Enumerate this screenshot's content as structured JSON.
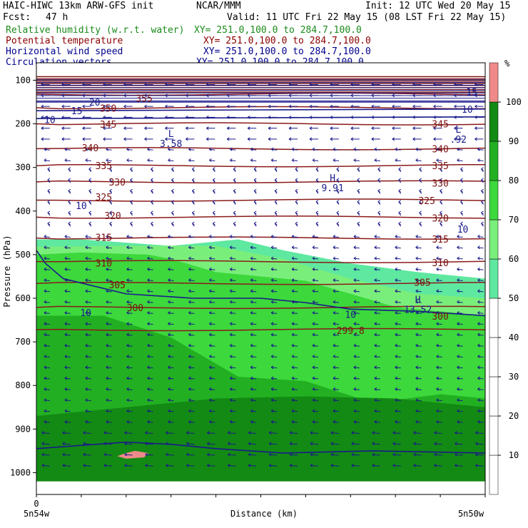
{
  "header": {
    "model": "HAIC-HIWC 13km ARW-GFS init",
    "org": "NCAR/MMM",
    "init": "Init: 12 UTC Wed 20 May 15",
    "fcst": "Fcst:",
    "fcst_value": "47 h",
    "valid": "Valid: 11 UTC Fri 22 May 15 (08 LST Fri 22 May 15)",
    "fields": [
      {
        "name": "Relative humidity (w.r.t. water)",
        "xy": "XY= 251.0,100.0 to 284.7,100.0",
        "color": "#1a8a1a"
      },
      {
        "name": "Potential temperature",
        "xy": "XY= 251.0,100.0 to 284.7,100.0",
        "color": "#8b0000"
      },
      {
        "name": "Horizontal wind speed",
        "xy": "XY= 251.0,100.0 to 284.7,100.0",
        "color": "#00008b"
      },
      {
        "name": "Circulation vectors",
        "xy": "XY= 251.0,100.0 to 284.7,100.0",
        "color": "#00008b"
      }
    ]
  },
  "colorbar": {
    "unit": "%",
    "levels": [
      10,
      20,
      30,
      40,
      50,
      60,
      70,
      80,
      90,
      100
    ],
    "colors": [
      "#ffffff",
      "#ffffff",
      "#ffffff",
      "#ffffff",
      "#ffffff",
      "#5fe8a0",
      "#7aee7a",
      "#3cd83c",
      "#22b022",
      "#138a13",
      "#f08a8a"
    ]
  },
  "chart_data": {
    "type": "heatmap",
    "description_series": "vertical cross-section: relative humidity shading, potential temperature contours, wind speed contours, circulation vectors",
    "xlabel": "Distance (km)",
    "ylabel": "Pressure (hPa)",
    "x_ticks": [
      "0"
    ],
    "x_end_labels": {
      "left": "5n54w",
      "right": "5n50w"
    },
    "y_ticks": [
      100,
      200,
      300,
      400,
      500,
      600,
      700,
      800,
      900,
      1000
    ],
    "ylim": [
      1050,
      60
    ],
    "theta_contours": [
      {
        "value": 355,
        "p": 132,
        "label_pos": "left"
      },
      {
        "value": 350,
        "p": 163
      },
      {
        "value": 345,
        "p": 200
      },
      {
        "value": 340,
        "p": 257
      },
      {
        "value": 335,
        "p": 296
      },
      {
        "value": 330,
        "p": 333
      },
      {
        "value": 325,
        "p": 375
      },
      {
        "value": 320,
        "p": 414
      },
      {
        "value": 315,
        "p": 462
      },
      {
        "value": 310,
        "p": 516
      },
      {
        "value": 305,
        "p": 566
      },
      {
        "value": 300,
        "p": 621
      },
      {
        "value": 299.8,
        "p": 672
      }
    ],
    "theta_labels": [
      {
        "text": "355",
        "x": 0.24,
        "p": 141
      },
      {
        "text": "350",
        "x": 0.16,
        "p": 164
      },
      {
        "text": "345",
        "x": 0.16,
        "p": 201
      },
      {
        "text": "345",
        "x": 0.9,
        "p": 200
      },
      {
        "text": "340",
        "x": 0.12,
        "p": 255
      },
      {
        "text": "340",
        "x": 0.9,
        "p": 257
      },
      {
        "text": "335",
        "x": 0.15,
        "p": 296
      },
      {
        "text": "335",
        "x": 0.9,
        "p": 296
      },
      {
        "text": "330",
        "x": 0.18,
        "p": 333
      },
      {
        "text": "330",
        "x": 0.9,
        "p": 336
      },
      {
        "text": "325",
        "x": 0.15,
        "p": 368
      },
      {
        "text": "325",
        "x": 0.87,
        "p": 376
      },
      {
        "text": "320",
        "x": 0.17,
        "p": 410
      },
      {
        "text": "320",
        "x": 0.9,
        "p": 416
      },
      {
        "text": "315",
        "x": 0.15,
        "p": 460
      },
      {
        "text": "315",
        "x": 0.9,
        "p": 464
      },
      {
        "text": "310",
        "x": 0.15,
        "p": 519
      },
      {
        "text": "310",
        "x": 0.9,
        "p": 518
      },
      {
        "text": "305",
        "x": 0.18,
        "p": 569
      },
      {
        "text": "305",
        "x": 0.86,
        "p": 563
      },
      {
        "text": "300",
        "x": 0.22,
        "p": 621
      },
      {
        "text": "300",
        "x": 0.9,
        "p": 641
      },
      {
        "text": "299.8",
        "x": 0.7,
        "p": 674
      }
    ],
    "wind_labels": [
      {
        "text": "10",
        "x": 0.1,
        "p": 387
      },
      {
        "text": "10",
        "x": 0.95,
        "p": 441
      },
      {
        "text": "10",
        "x": 0.11,
        "p": 633
      },
      {
        "text": "10",
        "x": 0.7,
        "p": 637
      },
      {
        "text": "10",
        "x": 0.03,
        "p": 190
      },
      {
        "text": "15",
        "x": 0.09,
        "p": 170
      },
      {
        "text": "20",
        "x": 0.13,
        "p": 150
      },
      {
        "text": "10",
        "x": 0.96,
        "p": 166
      },
      {
        "text": "15",
        "x": 0.97,
        "p": 126
      }
    ],
    "extrema": [
      {
        "type": "L",
        "value": "3.58",
        "x": 0.3,
        "p": 230
      },
      {
        "type": "L",
        "value": ".92",
        "x": 0.94,
        "p": 220
      },
      {
        "type": "H",
        "value": "9.91",
        "x": 0.66,
        "p": 332
      },
      {
        "type": "H",
        "value": "13.52",
        "x": 0.85,
        "p": 611
      }
    ],
    "rh_regions": [
      {
        "rh": 50,
        "top": [
          [
            0,
            465
          ],
          [
            0.1,
            465
          ],
          [
            0.3,
            480
          ],
          [
            0.45,
            465
          ],
          [
            0.55,
            490
          ],
          [
            0.7,
            520
          ],
          [
            0.85,
            540
          ],
          [
            1,
            555
          ]
        ]
      },
      {
        "rh": 60,
        "top": [
          [
            0,
            482
          ],
          [
            0.2,
            480
          ],
          [
            0.4,
            480
          ],
          [
            0.55,
            510
          ],
          [
            0.7,
            555
          ],
          [
            0.85,
            590
          ],
          [
            1,
            600
          ]
        ]
      },
      {
        "rh": 70,
        "top": [
          [
            0,
            500
          ],
          [
            0.1,
            495
          ],
          [
            0.25,
            500
          ],
          [
            0.3,
            510
          ],
          [
            0.4,
            540
          ],
          [
            0.6,
            560
          ],
          [
            0.8,
            620
          ],
          [
            1,
            640
          ]
        ]
      },
      {
        "rh": 80,
        "top": [
          [
            0,
            640
          ],
          [
            0.15,
            640
          ],
          [
            0.3,
            690
          ],
          [
            0.45,
            780
          ],
          [
            0.6,
            790
          ],
          [
            0.75,
            840
          ],
          [
            0.9,
            820
          ],
          [
            1,
            830
          ]
        ]
      },
      {
        "rh": 90,
        "top": [
          [
            0,
            870
          ],
          [
            0.2,
            850
          ],
          [
            0.4,
            830
          ],
          [
            0.6,
            825
          ],
          [
            0.8,
            830
          ],
          [
            1,
            850
          ]
        ]
      },
      {
        "rh": 100,
        "top": [
          [
            0.2,
            955
          ],
          [
            0.22,
            950
          ],
          [
            0.25,
            955
          ],
          [
            0.24,
            965
          ],
          [
            0.2,
            968
          ],
          [
            0.18,
            962
          ]
        ],
        "closed": true
      }
    ]
  }
}
